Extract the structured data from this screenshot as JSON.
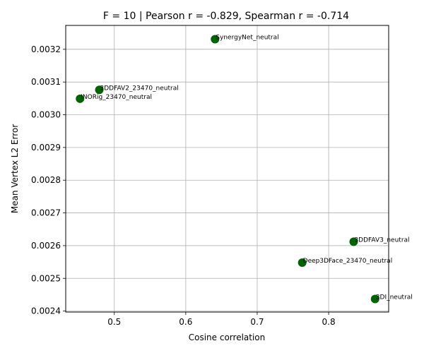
{
  "chart_data": {
    "type": "scatter",
    "title": "F = 10 | Pearson r = -0.829, Spearman r = -0.714",
    "xlabel": "Cosine correlation",
    "ylabel": "Mean Vertex L2 Error",
    "xlim": [
      0.432,
      0.884
    ],
    "ylim": [
      0.002397,
      0.003273
    ],
    "xticks": [
      {
        "value": 0.5,
        "label": "0.5"
      },
      {
        "value": 0.6,
        "label": "0.6"
      },
      {
        "value": 0.7,
        "label": "0.7"
      },
      {
        "value": 0.8,
        "label": "0.8"
      }
    ],
    "yticks": [
      {
        "value": 0.0024,
        "label": "0.0024"
      },
      {
        "value": 0.0025,
        "label": "0.0025"
      },
      {
        "value": 0.0026,
        "label": "0.0026"
      },
      {
        "value": 0.0027,
        "label": "0.0027"
      },
      {
        "value": 0.0028,
        "label": "0.0028"
      },
      {
        "value": 0.0029,
        "label": "0.0029"
      },
      {
        "value": 0.003,
        "label": "0.0030"
      },
      {
        "value": 0.0031,
        "label": "0.0031"
      },
      {
        "value": 0.0032,
        "label": "0.0032"
      }
    ],
    "grid": true,
    "marker_color": "#006400",
    "points": [
      {
        "x": 0.641,
        "y": 0.003231,
        "label": "SynergyNet_neutral"
      },
      {
        "x": 0.479,
        "y": 0.003076,
        "label": "3DDFAV2_23470_neutral"
      },
      {
        "x": 0.452,
        "y": 0.003049,
        "label": "INORig_23470_neutral"
      },
      {
        "x": 0.835,
        "y": 0.002612,
        "label": "3DDFAV3_neutral"
      },
      {
        "x": 0.763,
        "y": 0.002548,
        "label": "Deep3DFace_23470_neutral"
      },
      {
        "x": 0.865,
        "y": 0.002437,
        "label": "3DI_neutral"
      }
    ]
  }
}
